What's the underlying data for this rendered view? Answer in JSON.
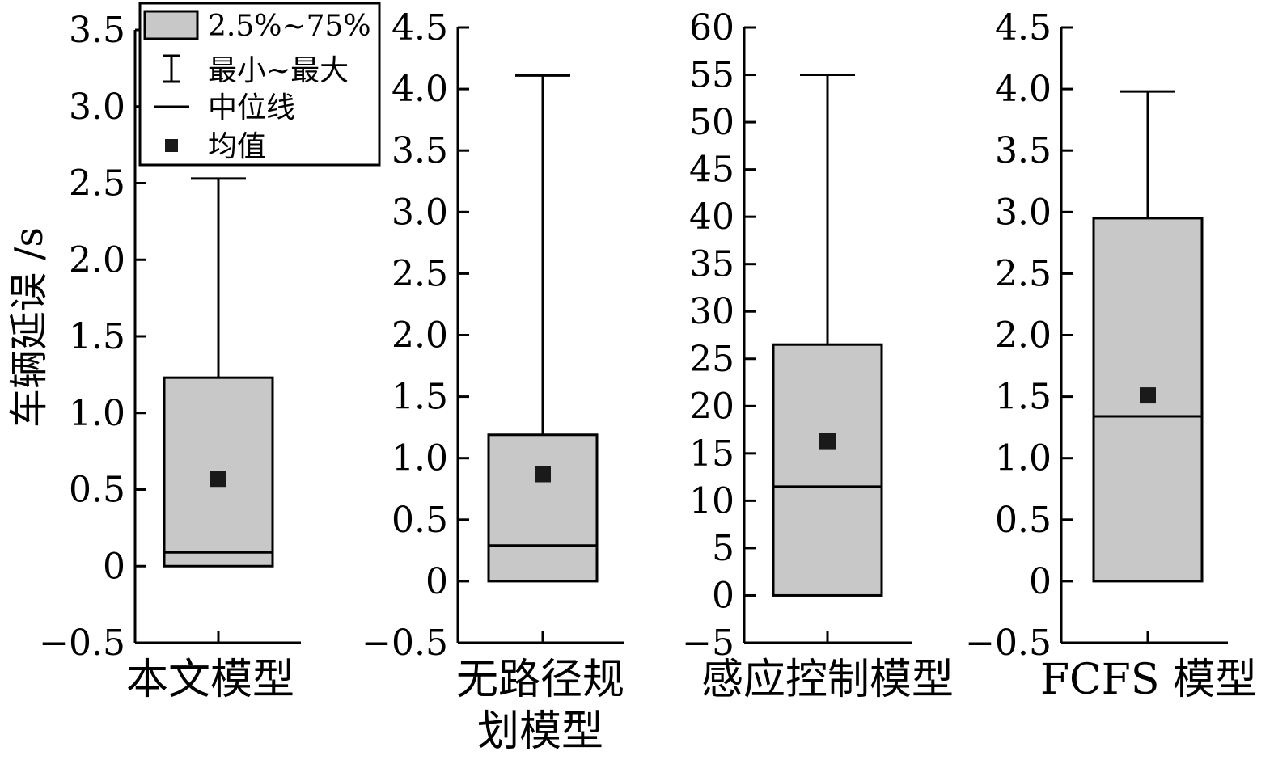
{
  "chart_data": {
    "type": "boxplot",
    "ylabel": "车辆延误 /s",
    "colors": {
      "box_fill": "#c8c8c8",
      "line": "#000000",
      "mean_marker": "#1a1a1a"
    },
    "legend": {
      "placement": "top-left",
      "entries": [
        {
          "name": "2.5%~75%",
          "symbol": "box"
        },
        {
          "name": "最小~最大",
          "symbol": "whisker"
        },
        {
          "name": "中位线",
          "symbol": "line"
        },
        {
          "name": "均值",
          "symbol": "square"
        }
      ]
    },
    "panels": [
      {
        "category_lines": [
          "本文模型"
        ],
        "ylim": [
          -0.5,
          3.5
        ],
        "ticks": [
          -0.5,
          0,
          0.5,
          1.0,
          1.5,
          2.0,
          2.5,
          3.0,
          3.5
        ],
        "tick_labels": [
          "−0.5",
          "0",
          "0.5",
          "1.0",
          "1.5",
          "2.0",
          "2.5",
          "3.0",
          "3.5"
        ],
        "q1": 0.0,
        "q3": 1.23,
        "median": 0.09,
        "mean": 0.57,
        "min": 0.0,
        "max": 2.53
      },
      {
        "category_lines": [
          "无路径规",
          "划模型"
        ],
        "ylim": [
          -0.5,
          4.5
        ],
        "ticks": [
          -0.5,
          0,
          0.5,
          1.0,
          1.5,
          2.0,
          2.5,
          3.0,
          3.5,
          4.0,
          4.5
        ],
        "tick_labels": [
          "−0.5",
          "0",
          "0.5",
          "1.0",
          "1.5",
          "2.0",
          "2.5",
          "3.0",
          "3.5",
          "4.0",
          "4.5"
        ],
        "q1": 0.0,
        "q3": 1.19,
        "median": 0.29,
        "mean": 0.87,
        "min": 0.0,
        "max": 4.11
      },
      {
        "category_lines": [
          "感应控制模型"
        ],
        "ylim": [
          -5,
          60
        ],
        "ticks": [
          -5,
          0,
          5,
          10,
          15,
          20,
          25,
          30,
          35,
          40,
          45,
          50,
          55,
          60
        ],
        "tick_labels": [
          "−5",
          "0",
          "5",
          "10",
          "15",
          "20",
          "25",
          "30",
          "35",
          "40",
          "45",
          "50",
          "55",
          "60"
        ],
        "q1": 0.0,
        "q3": 26.5,
        "median": 11.5,
        "mean": 16.3,
        "min": 0.0,
        "max": 55.0
      },
      {
        "category_lines": [
          "FCFS 模型"
        ],
        "ylim": [
          -0.5,
          4.5
        ],
        "ticks": [
          -0.5,
          0,
          0.5,
          1.0,
          1.5,
          2.0,
          2.5,
          3.0,
          3.5,
          4.0,
          4.5
        ],
        "tick_labels": [
          "−0.5",
          "0",
          "0.5",
          "1.0",
          "1.5",
          "2.0",
          "2.5",
          "3.0",
          "3.5",
          "4.0",
          "4.5"
        ],
        "q1": 0.0,
        "q3": 2.95,
        "median": 1.34,
        "mean": 1.51,
        "min": 0.0,
        "max": 3.98
      }
    ]
  }
}
